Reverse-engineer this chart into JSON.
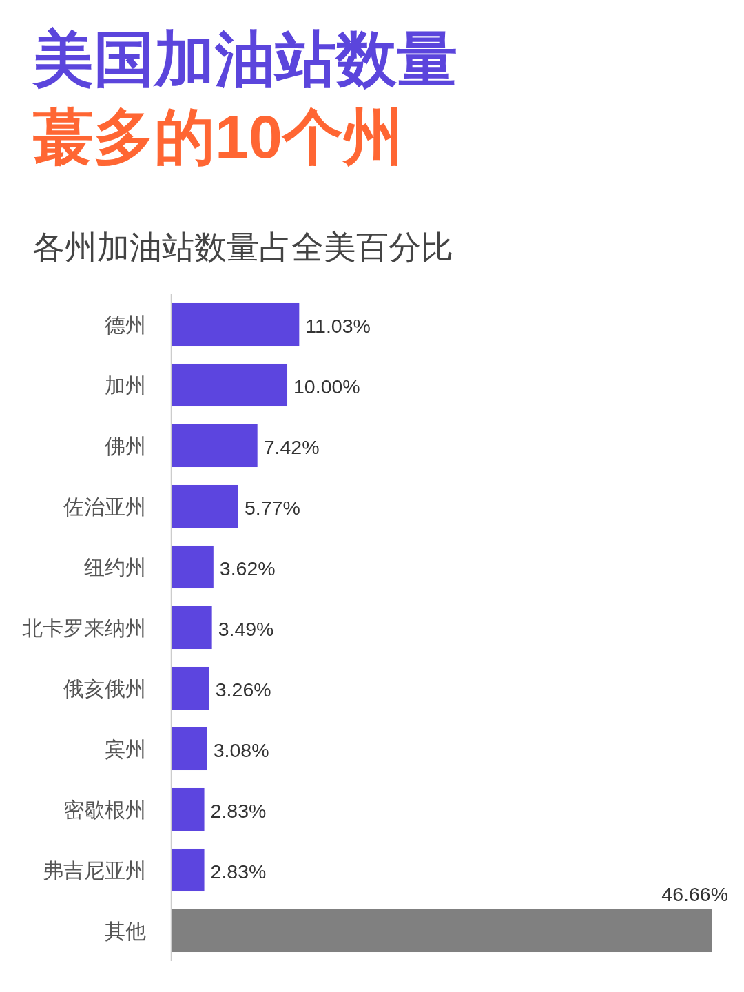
{
  "chart_data": {
    "type": "bar",
    "orientation": "horizontal",
    "title": "美国加油站数量蕞多的10个州",
    "subtitle": "各州加油站数量占全美百分比",
    "categories": [
      "德州",
      "加州",
      "佛州",
      "佐治亚州",
      "纽约州",
      "北卡罗来纳州",
      "俄亥俄州",
      "宾州",
      "密歇根州",
      "弗吉尼亚州",
      "其他"
    ],
    "values": [
      11.03,
      10.0,
      7.42,
      5.77,
      3.62,
      3.49,
      3.26,
      3.08,
      2.83,
      2.83,
      46.66
    ],
    "colors": [
      "#5c45df",
      "#5c45df",
      "#5c45df",
      "#5c45df",
      "#5c45df",
      "#5c45df",
      "#5c45df",
      "#5c45df",
      "#5c45df",
      "#5c45df",
      "#808080"
    ],
    "value_labels": [
      "11.03%",
      "10.00%",
      "7.42%",
      "5.77%",
      "3.62%",
      "3.49%",
      "3.26%",
      "3.08%",
      "2.83%",
      "2.83%",
      "46.66%"
    ]
  }
}
